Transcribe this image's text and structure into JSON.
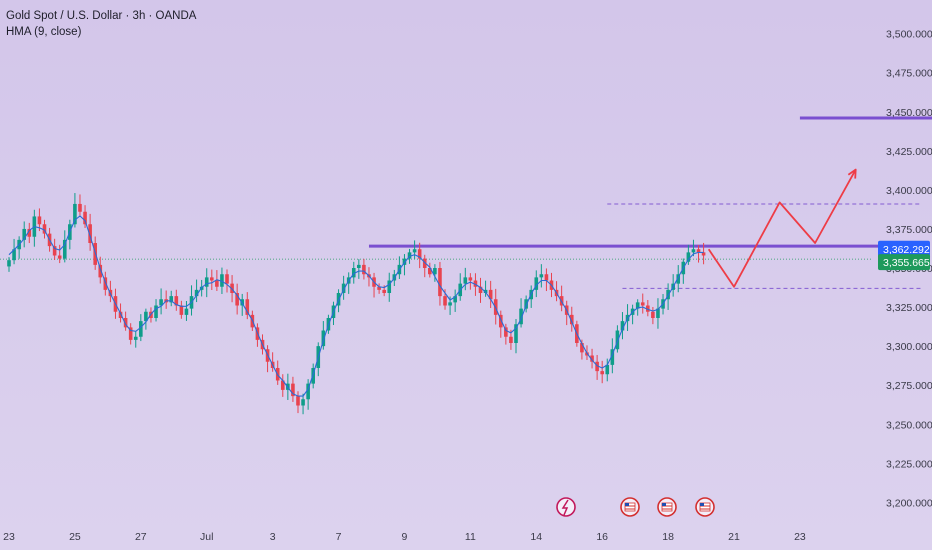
{
  "header": {
    "title": "Gold Spot / U.S. Dollar · 3h · OANDA",
    "indicator": "HMA (9, close)"
  },
  "colors": {
    "up": "#0f9d8a",
    "down": "#e8434f",
    "hma": "#2a6bd6",
    "level": "#7a4fd0",
    "projection": "#ee3c46",
    "badge_current": "#2962ff",
    "badge_hma": "#1e9a5c"
  },
  "chart_data": {
    "type": "candlestick",
    "ylim": [
      3190,
      3510
    ],
    "y_ticks": [
      "3,500.000",
      "3,475.000",
      "3,450.000",
      "3,425.000",
      "3,400.000",
      "3,375.000",
      "3,350.000",
      "3,325.000",
      "3,300.000",
      "3,275.000",
      "3,250.000",
      "3,225.000",
      "3,200.000"
    ],
    "y_tick_values": [
      3500,
      3475,
      3450,
      3425,
      3400,
      3375,
      3350,
      3325,
      3300,
      3275,
      3250,
      3225,
      3200
    ],
    "x_ticks": [
      "23",
      "25",
      "27",
      "Jul",
      "3",
      "7",
      "9",
      "11",
      "14",
      "16",
      "18",
      "21",
      "23"
    ],
    "x_tick_index": [
      0,
      13,
      26,
      39,
      52,
      65,
      78,
      91,
      104,
      117,
      130,
      143,
      156
    ],
    "current_price": "3,362.292",
    "current_price_value": 3362.292,
    "hma_price": "3,355.665",
    "hma_price_value": 3355.665,
    "closes": [
      3355,
      3362,
      3368,
      3375,
      3370,
      3383,
      3378,
      3372,
      3364,
      3358,
      3356,
      3368,
      3378,
      3391,
      3386,
      3378,
      3366,
      3352,
      3344,
      3336,
      3332,
      3322,
      3318,
      3312,
      3304,
      3306,
      3316,
      3322,
      3318,
      3326,
      3330,
      3328,
      3332,
      3326,
      3320,
      3324,
      3332,
      3336,
      3338,
      3344,
      3342,
      3338,
      3346,
      3340,
      3334,
      3326,
      3330,
      3320,
      3312,
      3304,
      3298,
      3290,
      3286,
      3278,
      3272,
      3276,
      3268,
      3262,
      3266,
      3276,
      3286,
      3300,
      3310,
      3318,
      3326,
      3334,
      3340,
      3344,
      3350,
      3352,
      3346,
      3344,
      3338,
      3336,
      3334,
      3342,
      3346,
      3352,
      3356,
      3360,
      3362,
      3356,
      3350,
      3346,
      3350,
      3332,
      3326,
      3328,
      3332,
      3340,
      3344,
      3342,
      3338,
      3334,
      3336,
      3330,
      3320,
      3312,
      3306,
      3302,
      3314,
      3324,
      3330,
      3336,
      3344,
      3346,
      3342,
      3336,
      3332,
      3326,
      3320,
      3314,
      3302,
      3296,
      3294,
      3290,
      3284,
      3282,
      3288,
      3298,
      3310,
      3316,
      3320,
      3324,
      3328,
      3326,
      3322,
      3318,
      3324,
      3330,
      3336,
      3340,
      3346,
      3354,
      3360,
      3362,
      3360,
      3358
    ],
    "levels": [
      {
        "price": 3446,
        "from_index": 156,
        "to_index": 203,
        "style": "solid"
      },
      {
        "price": 3364,
        "from_index": 71,
        "to_index": 180,
        "style": "solid"
      },
      {
        "price": 3391,
        "from_index": 118,
        "to_index": 180,
        "style": "dashed"
      },
      {
        "price": 3337,
        "from_index": 121,
        "to_index": 180,
        "style": "dashed"
      }
    ],
    "projection_path": [
      {
        "index": 138,
        "price": 3362
      },
      {
        "index": 143,
        "price": 3338
      },
      {
        "index": 152,
        "price": 3392
      },
      {
        "index": 159,
        "price": 3366
      },
      {
        "index": 167,
        "price": 3413
      }
    ]
  }
}
